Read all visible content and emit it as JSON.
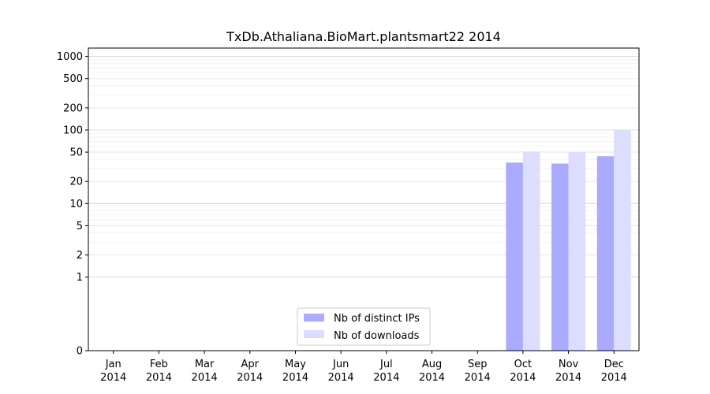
{
  "chart_data": {
    "type": "bar",
    "title": "TxDb.Athaliana.BioMart.plantsmart22 2014",
    "xlabel": "",
    "ylabel": "",
    "yscale": "symlog",
    "ylim": [
      0,
      1300
    ],
    "categories": [
      [
        "Jan",
        "2014"
      ],
      [
        "Feb",
        "2014"
      ],
      [
        "Mar",
        "2014"
      ],
      [
        "Apr",
        "2014"
      ],
      [
        "May",
        "2014"
      ],
      [
        "Jun",
        "2014"
      ],
      [
        "Jul",
        "2014"
      ],
      [
        "Aug",
        "2014"
      ],
      [
        "Sep",
        "2014"
      ],
      [
        "Oct",
        "2014"
      ],
      [
        "Nov",
        "2014"
      ],
      [
        "Dec",
        "2014"
      ]
    ],
    "y_ticks": [
      {
        "value": 0,
        "label": "0"
      },
      {
        "value": 1,
        "label": "1"
      },
      {
        "value": 2,
        "label": "2"
      },
      {
        "value": 5,
        "label": "5"
      },
      {
        "value": 10,
        "label": "10"
      },
      {
        "value": 20,
        "label": "20"
      },
      {
        "value": 50,
        "label": "50"
      },
      {
        "value": 100,
        "label": "100"
      },
      {
        "value": 200,
        "label": "200"
      },
      {
        "value": 500,
        "label": "500"
      },
      {
        "value": 1000,
        "label": "1000"
      }
    ],
    "grid": true,
    "legend_position": "bottom-center",
    "series": [
      {
        "name": "Nb of distinct IPs",
        "color": "#aaaaff",
        "values": [
          0,
          0,
          0,
          0,
          0,
          0,
          0,
          0,
          0,
          36,
          35,
          44
        ]
      },
      {
        "name": "Nb of downloads",
        "color": "#ddddff",
        "values": [
          0,
          0,
          0,
          0,
          0,
          0,
          0,
          0,
          0,
          51,
          50,
          99
        ]
      }
    ]
  }
}
